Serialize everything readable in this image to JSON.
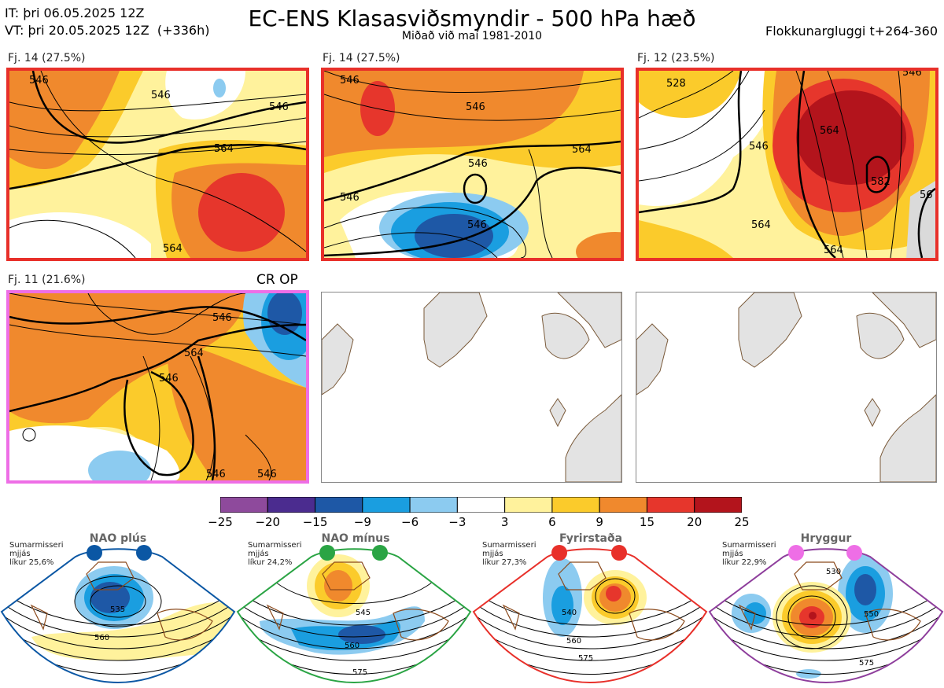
{
  "header": {
    "it_line": "IT: þri 06.05.2025 12Z",
    "vt_line": "VT: þri 20.05.2025 12Z  (+336h)",
    "title": "EC-ENS Klasasviðsmyndir - 500 hPa hæð",
    "subtitle": "Miðað við maí 1981-2010",
    "window": "Flokkunargluggi t+264-360"
  },
  "panels": [
    {
      "label": "Fj. 14 (27.5%)",
      "border": "#e8302a",
      "contours": [
        "546",
        "546",
        "564",
        "546",
        "564"
      ]
    },
    {
      "label": "Fj. 14 (27.5%)",
      "border": "#e8302a",
      "contours": [
        "546",
        "546",
        "564",
        "546",
        "546",
        "546"
      ]
    },
    {
      "label": "Fj. 12 (23.5%)",
      "border": "#e8302a",
      "contours": [
        "528",
        "546",
        "564",
        "546",
        "582",
        "564",
        "564",
        "56"
      ]
    },
    {
      "label": "Fj. 11 (21.6%)",
      "border": "#ee6ee6",
      "contours": [
        "546",
        "564",
        "546",
        "546",
        "546"
      ]
    }
  ],
  "crop_label": "CR OP",
  "colorbar": {
    "ticks": [
      "−25",
      "−20",
      "−15",
      "−9",
      "−6",
      "−3",
      "3",
      "6",
      "9",
      "15",
      "20",
      "25"
    ],
    "colors": [
      "#8e4a9c",
      "#4b2c8f",
      "#1e58a6",
      "#1a9ee0",
      "#8ccbf0",
      "#ffffff",
      "#fff29c",
      "#fbcb2b",
      "#f0892d",
      "#e6362c",
      "#b3141c"
    ]
  },
  "regimes": [
    {
      "title": "NAO plús",
      "color": "#0b57a4",
      "season": "Sumarmisseri",
      "avg": "mjjás",
      "prob": "líkur 25,6%",
      "contours": [
        "535",
        "560"
      ]
    },
    {
      "title": "NAO mínus",
      "color": "#2aa444",
      "season": "Sumarmisseri",
      "avg": "mjjás",
      "prob": "líkur 24,2%",
      "contours": [
        "545",
        "560",
        "575"
      ]
    },
    {
      "title": "Fyrirstaða",
      "color": "#e8302a",
      "season": "Sumarmisseri",
      "avg": "mjjás",
      "prob": "líkur 27,3%",
      "contours": [
        "540",
        "560",
        "575"
      ]
    },
    {
      "title": "Hryggur",
      "color": "#ee6ee6",
      "season": "Sumarmisseri",
      "avg": "mjjás",
      "prob": "líkur 22,9%",
      "contours": [
        "530",
        "550",
        "575"
      ]
    }
  ]
}
